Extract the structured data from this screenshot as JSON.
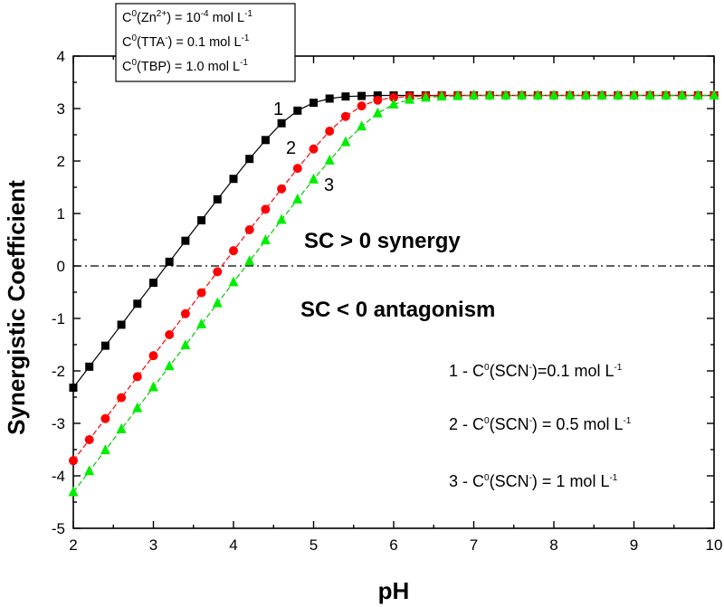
{
  "chart_data": {
    "type": "line",
    "title": "",
    "xlabel": "pH",
    "ylabel": "Synergistic Coefficient",
    "xlim": [
      2,
      10
    ],
    "ylim": [
      -5,
      4
    ],
    "xticks": [
      "2",
      "3",
      "4",
      "5",
      "6",
      "7",
      "8",
      "9",
      "10"
    ],
    "yticks": [
      "4",
      "3",
      "2",
      "1",
      "0",
      "-1",
      "-2",
      "-3",
      "-4",
      "-5"
    ],
    "reference_line": {
      "y": 0,
      "style": "dash-dot",
      "color": "#000000"
    },
    "series": [
      {
        "name": "1",
        "marker": "square",
        "color": "#000000",
        "line_color": "#000000",
        "x": [
          2.0,
          2.2,
          2.4,
          2.6,
          2.8,
          3.0,
          3.2,
          3.4,
          3.6,
          3.8,
          4.0,
          4.2,
          4.4,
          4.6,
          4.8,
          5.0,
          5.2,
          5.4,
          5.6,
          5.8,
          6.0,
          6.2,
          6.4,
          6.6,
          6.8,
          7.0,
          7.2,
          7.4,
          7.6,
          7.8,
          8.0,
          8.2,
          8.4,
          8.6,
          8.8,
          9.0,
          9.2,
          9.4,
          9.6,
          9.8,
          10.0
        ],
        "values": [
          -2.32,
          -1.92,
          -1.52,
          -1.12,
          -0.72,
          -0.32,
          0.08,
          0.48,
          0.87,
          1.27,
          1.66,
          2.04,
          2.4,
          2.72,
          2.96,
          3.11,
          3.19,
          3.23,
          3.24,
          3.25,
          3.25,
          3.25,
          3.25,
          3.25,
          3.25,
          3.25,
          3.25,
          3.25,
          3.25,
          3.25,
          3.25,
          3.25,
          3.25,
          3.25,
          3.25,
          3.25,
          3.25,
          3.25,
          3.25,
          3.25,
          3.25
        ]
      },
      {
        "name": "2",
        "marker": "circle",
        "color": "#ff0000",
        "line_color": "#ff0000",
        "x": [
          2.0,
          2.2,
          2.4,
          2.6,
          2.8,
          3.0,
          3.2,
          3.4,
          3.6,
          3.8,
          4.0,
          4.2,
          4.4,
          4.6,
          4.8,
          5.0,
          5.2,
          5.4,
          5.6,
          5.8,
          6.0,
          6.2,
          6.4,
          6.6,
          6.8,
          7.0,
          7.2,
          7.4,
          7.6,
          7.8,
          8.0,
          8.2,
          8.4,
          8.6,
          8.8,
          9.0,
          9.2,
          9.4,
          9.6,
          9.8,
          10.0
        ],
        "values": [
          -3.71,
          -3.31,
          -2.91,
          -2.51,
          -2.11,
          -1.71,
          -1.31,
          -0.91,
          -0.51,
          -0.11,
          0.29,
          0.69,
          1.08,
          1.47,
          1.86,
          2.23,
          2.57,
          2.85,
          3.05,
          3.16,
          3.21,
          3.23,
          3.24,
          3.25,
          3.25,
          3.25,
          3.25,
          3.25,
          3.25,
          3.25,
          3.25,
          3.25,
          3.25,
          3.25,
          3.25,
          3.25,
          3.25,
          3.25,
          3.25,
          3.25,
          3.25
        ]
      },
      {
        "name": "3",
        "marker": "triangle",
        "color": "#00ee00",
        "line_color": "#00cc00",
        "x": [
          2.0,
          2.2,
          2.4,
          2.6,
          2.8,
          3.0,
          3.2,
          3.4,
          3.6,
          3.8,
          4.0,
          4.2,
          4.4,
          4.6,
          4.8,
          5.0,
          5.2,
          5.4,
          5.6,
          5.8,
          6.0,
          6.2,
          6.4,
          6.6,
          6.8,
          7.0,
          7.2,
          7.4,
          7.6,
          7.8,
          8.0,
          8.2,
          8.4,
          8.6,
          8.8,
          9.0,
          9.2,
          9.4,
          9.6,
          9.8,
          10.0
        ],
        "values": [
          -4.31,
          -3.91,
          -3.51,
          -3.11,
          -2.71,
          -2.31,
          -1.91,
          -1.51,
          -1.11,
          -0.71,
          -0.31,
          0.09,
          0.49,
          0.88,
          1.27,
          1.65,
          2.01,
          2.36,
          2.66,
          2.91,
          3.08,
          3.17,
          3.21,
          3.23,
          3.24,
          3.25,
          3.25,
          3.25,
          3.25,
          3.25,
          3.25,
          3.25,
          3.25,
          3.25,
          3.25,
          3.25,
          3.25,
          3.25,
          3.25,
          3.25,
          3.25
        ]
      }
    ]
  },
  "annotations": {
    "conditions": {
      "zn": {
        "pre": "C",
        "sup1": "0",
        "mid": "(Zn",
        "sup2": "2+",
        "mid2": ") = 10",
        "sup3": "-4",
        "post": " mol L",
        "sup4": "-1"
      },
      "tta": {
        "pre": "C",
        "sup1": "0",
        "mid": "(TTA",
        "sup2": "-",
        "mid2": ") = 0.1 mol L",
        "sup3": "-1"
      },
      "tbp": {
        "pre": "C",
        "sup1": "0",
        "mid": "(TBP) = 1.0 mol L",
        "sup2": "-1"
      }
    },
    "synergy": "SC > 0 synergy",
    "antagonism": "SC < 0 antagonism",
    "curve_labels": [
      "1",
      "2",
      "3"
    ],
    "legend": [
      {
        "prefix": "1 - C",
        "sup1": "0",
        "mid": "(SCN",
        "sup2": "-",
        "mid2": ")=0.1 mol L",
        "sup3": "-1"
      },
      {
        "prefix": "2 - C",
        "sup1": "0",
        "mid": "(SCN",
        "sup2": "-",
        "mid2": ") = 0.5 mol L",
        "sup3": "-1"
      },
      {
        "prefix": "3 - C",
        "sup1": "0",
        "mid": "(SCN",
        "sup2": "-",
        "mid2": ") = 1 mol L",
        "sup3": "-1"
      }
    ]
  }
}
